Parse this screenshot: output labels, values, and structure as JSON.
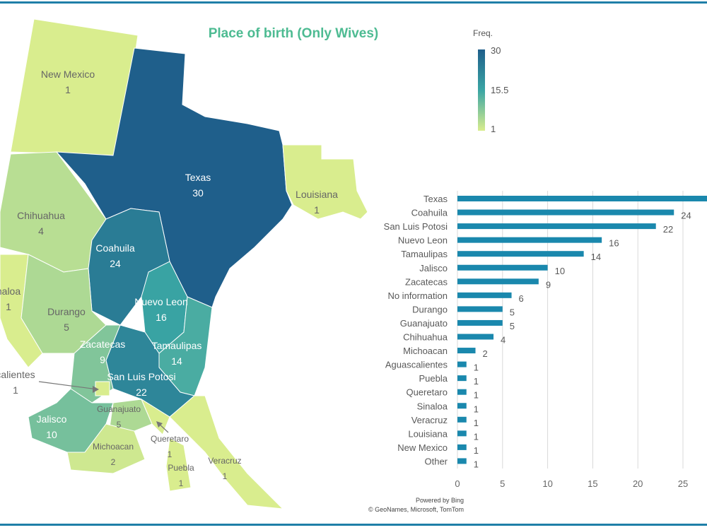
{
  "chart_data": [
    {
      "type": "choropleth-map",
      "title": "Place of birth (Only Wives)",
      "legend": {
        "title": "Freq.",
        "max": "30",
        "mid": "15.5",
        "min": "1",
        "color_min": "#d9ed8e",
        "color_mid": "#3aa5a4",
        "color_max": "#1f5f8b"
      },
      "regions": [
        {
          "name": "New Mexico",
          "value": 1
        },
        {
          "name": "Texas",
          "value": 30
        },
        {
          "name": "Louisiana",
          "value": 1
        },
        {
          "name": "Chihuahua",
          "value": 4
        },
        {
          "name": "Coahuila",
          "value": 24
        },
        {
          "name": "Sinaloa",
          "label": "naloa",
          "value": 1
        },
        {
          "name": "Durango",
          "value": 5
        },
        {
          "name": "Nuevo Leon",
          "value": 16
        },
        {
          "name": "Tamaulipas",
          "value": 14
        },
        {
          "name": "Zacatecas",
          "value": 9
        },
        {
          "name": "San Luis Potosi",
          "value": 22
        },
        {
          "name": "Aguascalientes",
          "label": "calientes",
          "value": 1
        },
        {
          "name": "Guanajuato",
          "value": 5
        },
        {
          "name": "Jalisco",
          "value": 10
        },
        {
          "name": "Michoacan",
          "value": 2
        },
        {
          "name": "Queretaro",
          "value": 1
        },
        {
          "name": "Puebla",
          "value": 1
        },
        {
          "name": "Veracruz",
          "value": 1
        }
      ],
      "credits": [
        "Powered by Bing",
        "© GeoNames, Microsoft, TomTom"
      ]
    },
    {
      "type": "bar",
      "orientation": "horizontal",
      "categories": [
        "Texas",
        "Coahuila",
        "San Luis Potosi",
        "Nuevo Leon",
        "Tamaulipas",
        "Jalisco",
        "Zacatecas",
        "No information",
        "Durango",
        "Guanajuato",
        "Chihuahua",
        "Michoacan",
        "Aguascalientes",
        "Puebla",
        "Queretaro",
        "Sinaloa",
        "Veracruz",
        "Louisiana",
        "New Mexico",
        "Other"
      ],
      "values": [
        30,
        24,
        22,
        16,
        14,
        10,
        9,
        6,
        5,
        5,
        4,
        2,
        1,
        1,
        1,
        1,
        1,
        1,
        1,
        1
      ],
      "data_labels": [
        "",
        "24",
        "22",
        "16",
        "14",
        "10",
        "9",
        "6",
        "5",
        "5",
        "4",
        "2",
        "1",
        "1",
        "1",
        "1",
        "1",
        "1",
        "1",
        "1"
      ],
      "x_ticks": [
        "0",
        "5",
        "10",
        "15",
        "20",
        "25"
      ],
      "xlim": [
        0,
        30
      ],
      "grid": true,
      "bar_color": "#1a88ad"
    }
  ]
}
